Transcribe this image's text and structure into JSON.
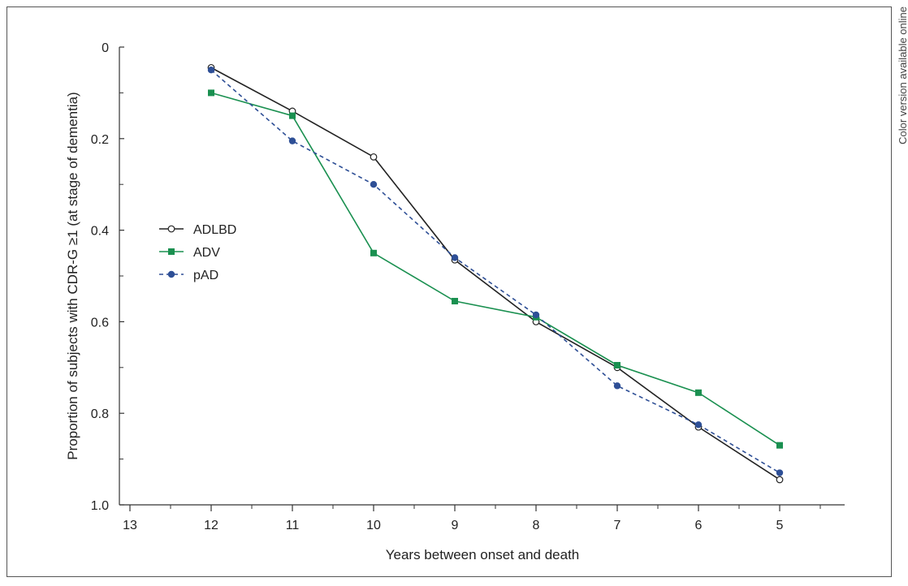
{
  "side_note": "Color version available online",
  "chart_data": {
    "type": "line",
    "title": "",
    "xlabel": "Years between onset and death",
    "ylabel": "Proportion of subjects with CDR-G ≥1 (at stage of dementia)",
    "x_reversed": true,
    "y_reversed": true,
    "xlim": [
      13,
      4.2
    ],
    "ylim": [
      0,
      1.0
    ],
    "x_ticks": [
      13,
      12,
      11,
      10,
      9,
      8,
      7,
      6,
      5
    ],
    "x_tick_labels": [
      "13",
      "12",
      "11",
      "10",
      "9",
      "8",
      "7",
      "6",
      "5"
    ],
    "y_ticks": [
      0,
      0.2,
      0.4,
      0.6,
      0.8,
      1.0
    ],
    "y_tick_labels": [
      "0",
      "0.2",
      "0.4",
      "0.6",
      "0.8",
      "1.0"
    ],
    "grid": false,
    "legend_position": "left",
    "x": [
      12,
      11,
      10,
      9,
      8,
      7,
      6,
      5
    ],
    "series": [
      {
        "name": "ADLBD",
        "values": [
          0.045,
          0.14,
          0.24,
          0.465,
          0.6,
          0.7,
          0.83,
          0.945
        ],
        "color": "#222222",
        "marker": "open-circle",
        "line_style": "solid"
      },
      {
        "name": "ADV",
        "values": [
          0.1,
          0.15,
          0.45,
          0.555,
          0.59,
          0.695,
          0.755,
          0.87
        ],
        "color": "#1a9050",
        "marker": "square",
        "line_style": "solid"
      },
      {
        "name": "pAD",
        "values": [
          0.05,
          0.205,
          0.3,
          0.46,
          0.585,
          0.74,
          0.825,
          0.93
        ],
        "color": "#2e4f96",
        "marker": "filled-circle",
        "line_style": "dashed"
      }
    ]
  }
}
